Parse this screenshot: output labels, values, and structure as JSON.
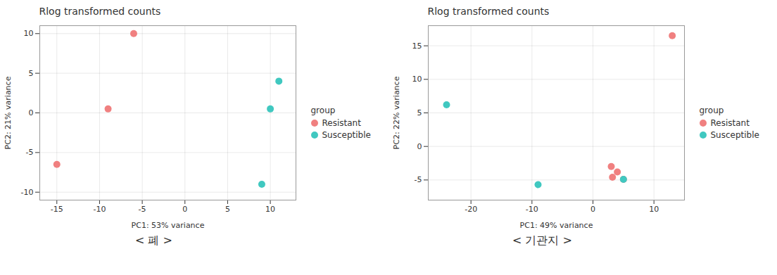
{
  "chart_data": [
    {
      "type": "scatter",
      "title": "Rlog transformed counts",
      "subtitle": "< 폐 >",
      "xlabel": "PC1: 53% variance",
      "ylabel": "PC2: 21% variance",
      "xlim": [
        -17,
        13
      ],
      "ylim": [
        -11,
        11
      ],
      "xticks": [
        -15,
        -10,
        -5,
        0,
        5,
        10
      ],
      "yticks": [
        -10,
        -5,
        0,
        5,
        10
      ],
      "grid": true,
      "legend": "right",
      "legend_title": "group",
      "series": [
        {
          "name": "Resistant",
          "color": "#F08080",
          "values": [
            [
              -15,
              -6.5
            ],
            [
              -9,
              0.5
            ],
            [
              -6,
              10
            ]
          ]
        },
        {
          "name": "Susceptible",
          "color": "#40C8C0",
          "values": [
            [
              9,
              -9
            ],
            [
              10,
              0.5
            ],
            [
              11,
              4
            ]
          ]
        }
      ]
    },
    {
      "type": "scatter",
      "title": "Rlog transformed counts",
      "subtitle": "< 기관지 >",
      "xlabel": "PC1: 49% variance",
      "ylabel": "PC2: 22% variance",
      "xlim": [
        -27,
        15
      ],
      "ylim": [
        -8,
        18
      ],
      "xticks": [
        -20,
        -10,
        0,
        10
      ],
      "yticks": [
        -5,
        0,
        5,
        10,
        15
      ],
      "grid": true,
      "legend": "right",
      "legend_title": "group",
      "series": [
        {
          "name": "Resistant",
          "color": "#F08080",
          "values": [
            [
              13,
              16.5
            ],
            [
              3.0,
              -3.0
            ],
            [
              4.0,
              -3.8
            ],
            [
              3.2,
              -4.6
            ],
            [
              5.0,
              -4.9
            ]
          ]
        },
        {
          "name": "Susceptible",
          "color": "#40C8C0",
          "values": [
            [
              -24,
              6.2
            ],
            [
              -9,
              -5.7
            ],
            [
              5.0,
              -4.9
            ]
          ]
        }
      ]
    }
  ]
}
